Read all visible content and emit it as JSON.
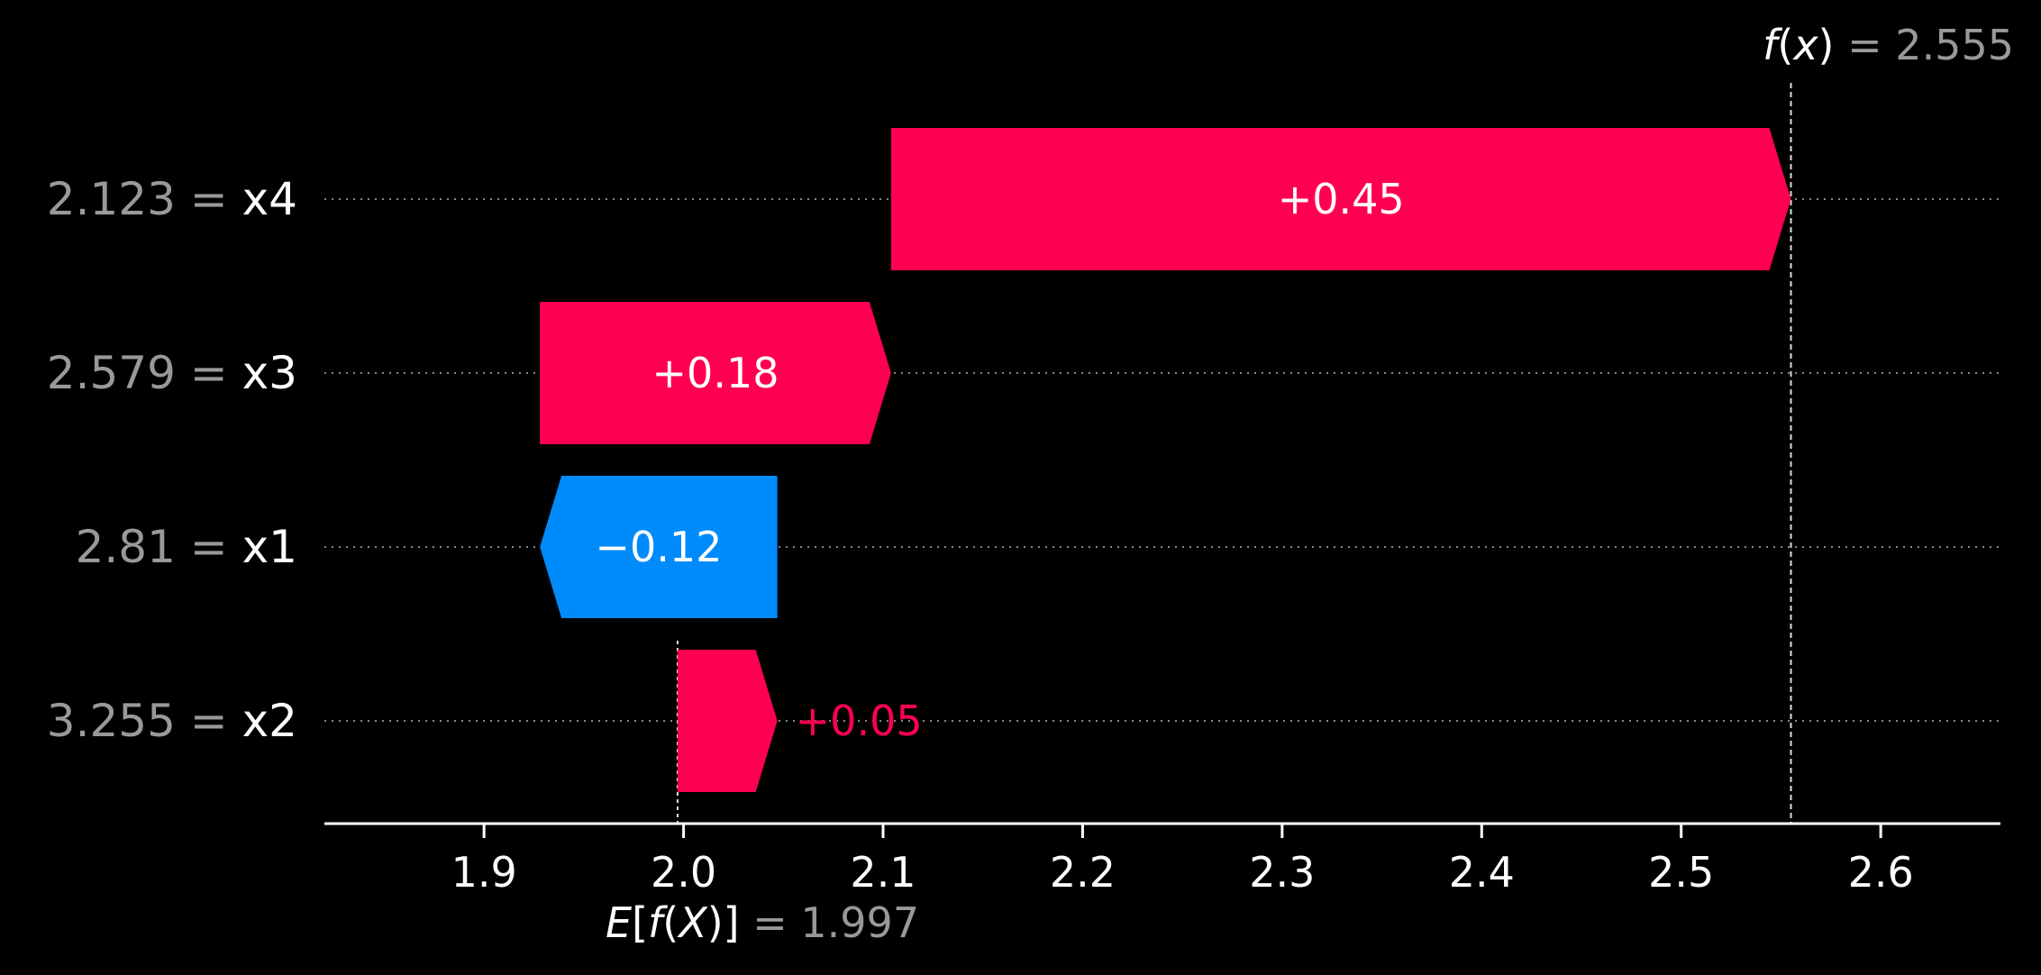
{
  "chart_data": {
    "type": "waterfall",
    "base_value": 1.997,
    "output_value": 2.555,
    "xlim": [
      1.82,
      2.66
    ],
    "xticks": [
      {
        "value": 1.9,
        "label": "1.9"
      },
      {
        "value": 2.0,
        "label": "2.0"
      },
      {
        "value": 2.1,
        "label": "2.1"
      },
      {
        "value": 2.2,
        "label": "2.2"
      },
      {
        "value": 2.3,
        "label": "2.3"
      },
      {
        "value": 2.4,
        "label": "2.4"
      },
      {
        "value": 2.5,
        "label": "2.5"
      },
      {
        "value": 2.6,
        "label": "2.6"
      }
    ],
    "fx_label": {
      "func": "f",
      "lparen": "(",
      "var": "x",
      "rparen": ")",
      "eq": " = ",
      "value": "2.555"
    },
    "ex_label": {
      "e": "E",
      "lbracket": "[",
      "func": "f",
      "lparen": "(",
      "var": "X",
      "rparen": ")",
      "rbracket": "]",
      "eq": " = ",
      "value": "1.997"
    },
    "features": [
      {
        "value_text": "2.123",
        "eq": " = ",
        "name": "x4",
        "start": 2.104,
        "end": 2.555,
        "label": "+0.45",
        "label_inside": true
      },
      {
        "value_text": "2.579",
        "eq": " = ",
        "name": "x3",
        "start": 1.928,
        "end": 2.104,
        "label": "+0.18",
        "label_inside": true
      },
      {
        "value_text": "2.81",
        "eq": " = ",
        "name": "x1",
        "start": 2.047,
        "end": 1.928,
        "label": "−0.12",
        "label_inside": true
      },
      {
        "value_text": "3.255",
        "eq": " = ",
        "name": "x2",
        "start": 1.997,
        "end": 2.047,
        "label": "+0.05",
        "label_inside": false
      }
    ],
    "colors": {
      "positive": "#ff0051",
      "negative": "#008bfb",
      "background": "#000000",
      "axis": "#ffffff",
      "muted_text": "#999999",
      "gridline": "#888888"
    }
  }
}
